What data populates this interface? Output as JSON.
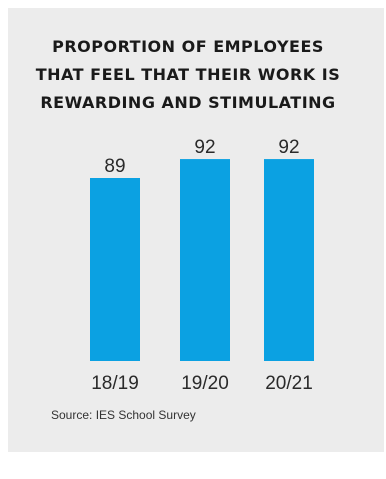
{
  "chart_data": {
    "type": "bar",
    "title_lines": [
      "PROPORTION OF EMPLOYEES",
      "THAT FEEL THAT THEIR WORK IS",
      "REWARDING AND STIMULATING"
    ],
    "categories": [
      "18/19",
      "19/20",
      "20/21"
    ],
    "values": [
      89,
      92,
      92
    ],
    "xlabel": "",
    "ylabel": "",
    "bar_color": "#0ba1e2",
    "grid": false,
    "legend": "none"
  },
  "source": "Source: IES School Survey"
}
